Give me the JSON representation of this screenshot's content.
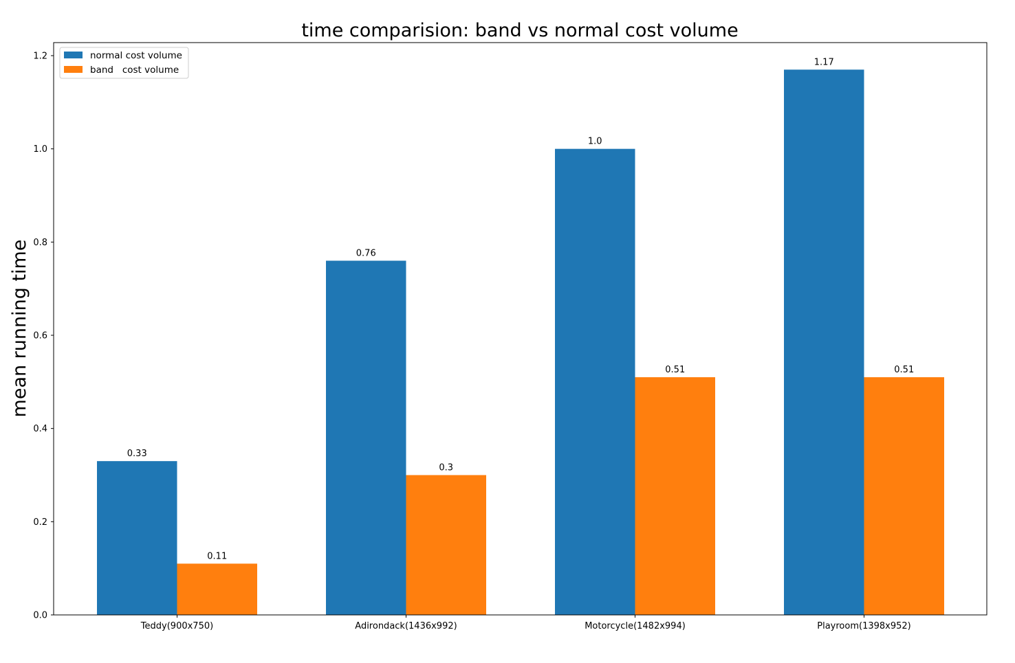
{
  "chart_data": {
    "type": "bar",
    "title": "time comparision: band vs normal cost volume",
    "xlabel": "",
    "ylabel": "mean running time",
    "categories": [
      "Teddy(900x750)",
      "Adirondack(1436x992)",
      "Motorcycle(1482x994)",
      "Playroom(1398x952)"
    ],
    "series": [
      {
        "name": "normal cost volume",
        "color": "#1f77b4",
        "values": [
          0.33,
          0.76,
          1.0,
          1.17
        ],
        "labels": [
          "0.33",
          "0.76",
          "1.0",
          "1.17"
        ]
      },
      {
        "name": "band   cost volume",
        "color": "#ff7f0e",
        "values": [
          0.11,
          0.3,
          0.51,
          0.51
        ],
        "labels": [
          "0.11",
          "0.3",
          "0.51",
          "0.51"
        ]
      }
    ],
    "ylim": [
      0,
      1.228
    ],
    "yticks": [
      0.0,
      0.2,
      0.4,
      0.6,
      0.8,
      1.0,
      1.2
    ],
    "ytick_labels": [
      "0.0",
      "0.2",
      "0.4",
      "0.6",
      "0.8",
      "1.0",
      "1.2"
    ],
    "grid": false,
    "legend_position": "top-left"
  }
}
